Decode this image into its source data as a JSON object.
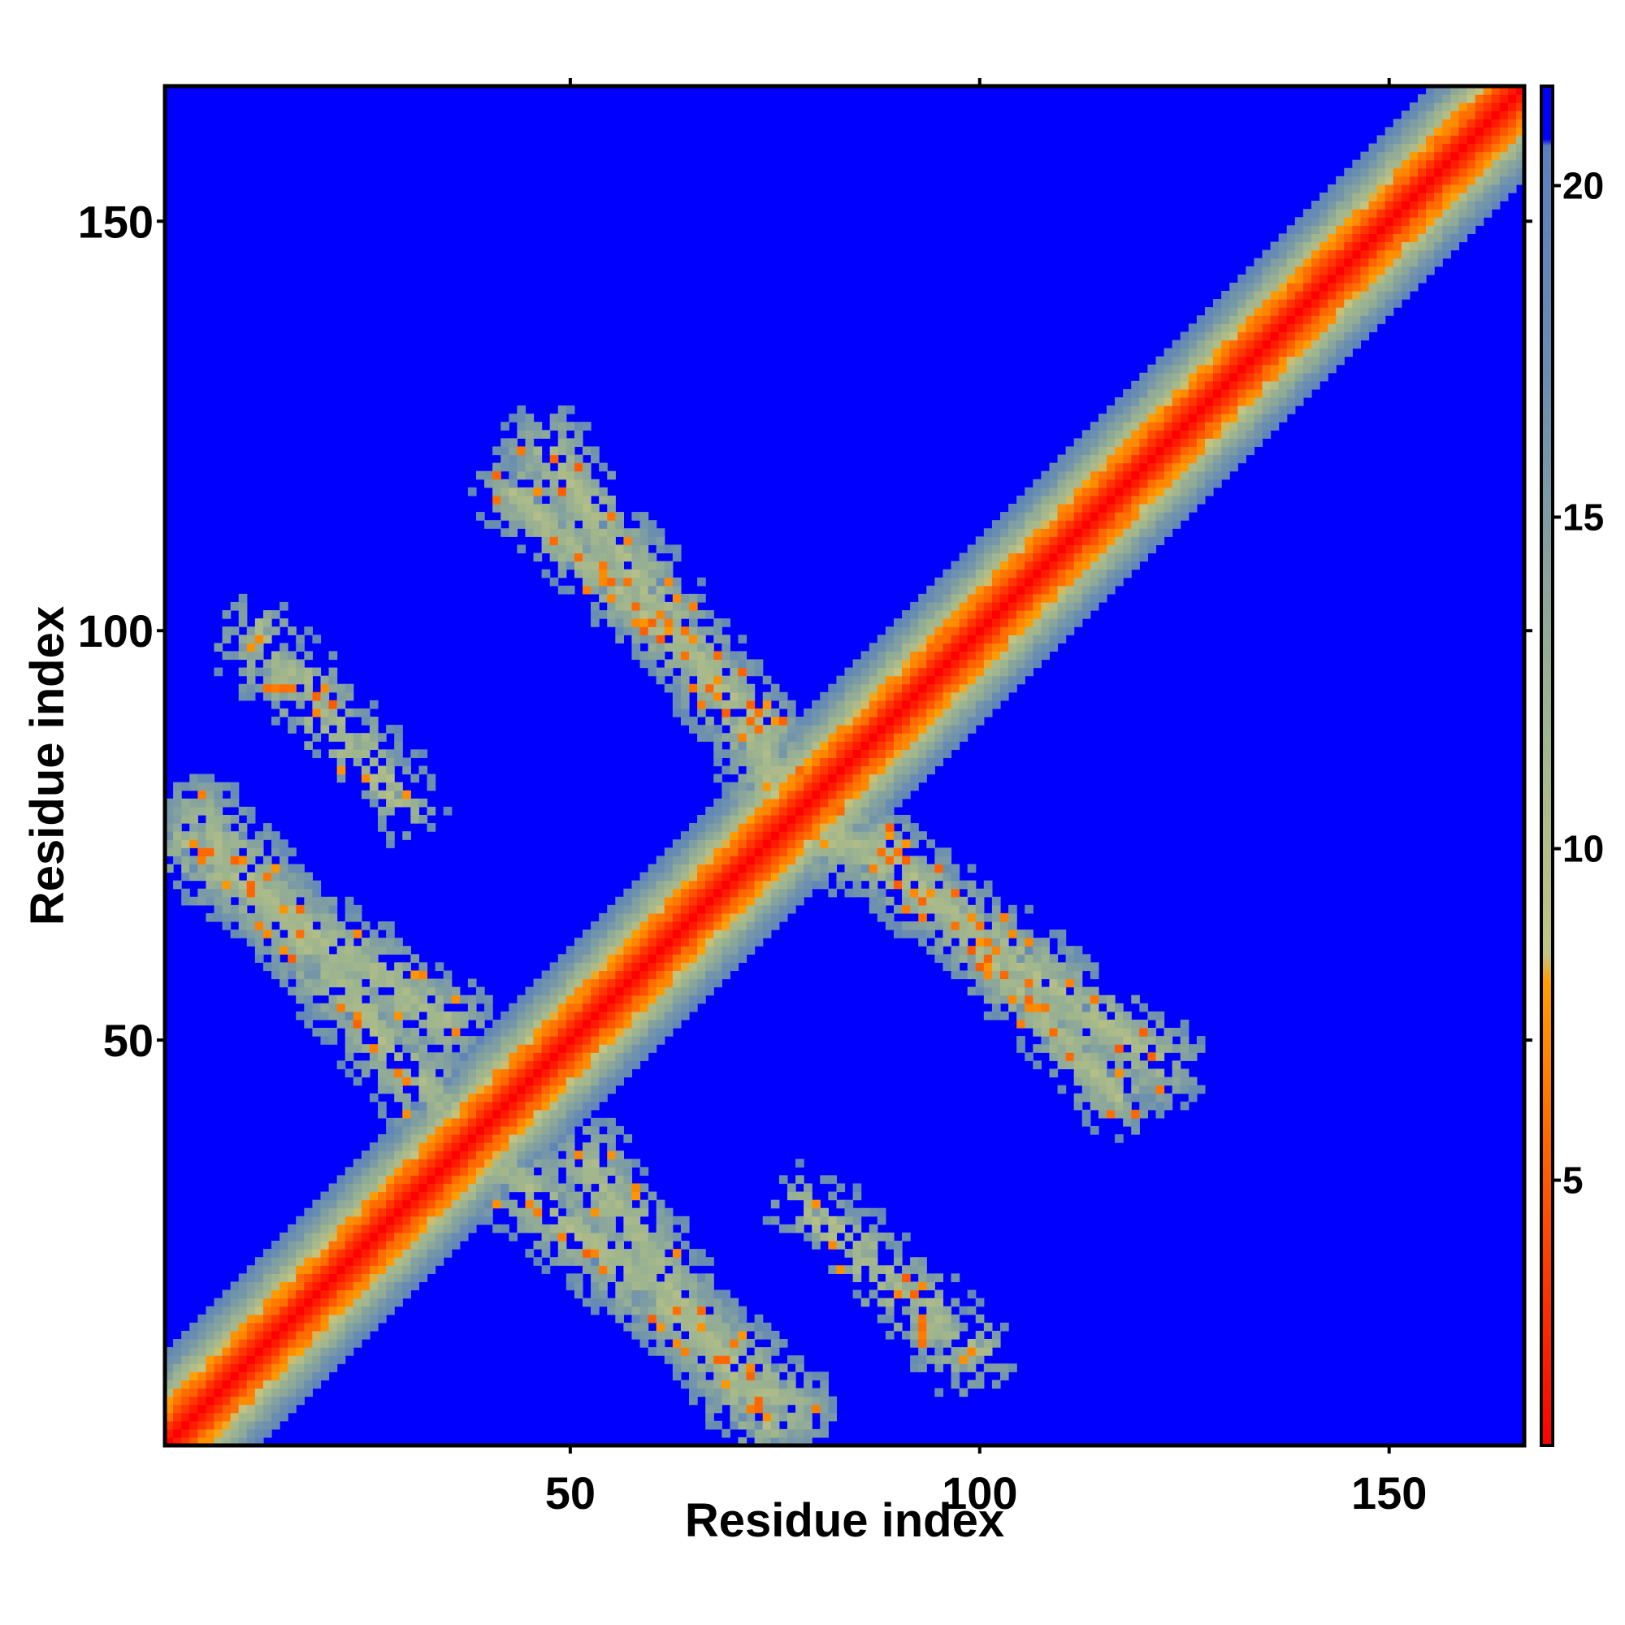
{
  "chart_data": {
    "type": "heatmap",
    "title": "",
    "xlabel": "Residue index",
    "ylabel": "Residue index",
    "xlim": [
      1,
      166
    ],
    "ylim": [
      1,
      166
    ],
    "n_residues": 166,
    "x_ticks": [
      50,
      100,
      150
    ],
    "y_ticks": [
      50,
      100,
      150
    ],
    "x_tick_labels": [
      "50",
      "100",
      "150"
    ],
    "y_tick_labels": [
      "50",
      "100",
      "150"
    ],
    "colorbar": {
      "range": [
        1,
        21.5
      ],
      "ticks": [
        5,
        10,
        15,
        20
      ],
      "tick_labels": [
        "5",
        "10",
        "15",
        "20"
      ],
      "stops": [
        {
          "value": 1,
          "color": "#ff0000"
        },
        {
          "value": 5,
          "color": "#ff5a00"
        },
        {
          "value": 8,
          "color": "#ff9f00"
        },
        {
          "value": 8.4,
          "color": "#c2c481"
        },
        {
          "value": 12,
          "color": "#9db48f"
        },
        {
          "value": 17,
          "color": "#6a8eb0"
        },
        {
          "value": 20.6,
          "color": "#5a7fbf"
        },
        {
          "value": 20.7,
          "color": "#0000ff"
        }
      ]
    },
    "background_color": "#0000ff",
    "diagonal_band": {
      "core_max_offset": 2,
      "orange_max_offset": 5,
      "teal_max_offset": 11
    },
    "off_diagonal_contacts": [
      {
        "description": "antiparallel band",
        "from": [
          3,
          74
        ],
        "to": [
          35,
          52
        ],
        "half_width": 6
      },
      {
        "description": "antiparallel band",
        "from": [
          43,
          33
        ],
        "to": [
          77,
          5
        ],
        "half_width": 6
      },
      {
        "description": "antiparallel band",
        "from": [
          43,
          117
        ],
        "to": [
          74,
          88
        ],
        "half_width": 5
      },
      {
        "description": "antiparallel band",
        "from": [
          74,
          82
        ],
        "to": [
          122,
          47
        ],
        "half_width": 6
      },
      {
        "description": "sparse patch",
        "from": [
          11,
          98
        ],
        "to": [
          30,
          78
        ],
        "half_width": 5
      },
      {
        "description": "sparse patch",
        "from": [
          82,
          28
        ],
        "to": [
          100,
          12
        ],
        "half_width": 5
      }
    ]
  }
}
